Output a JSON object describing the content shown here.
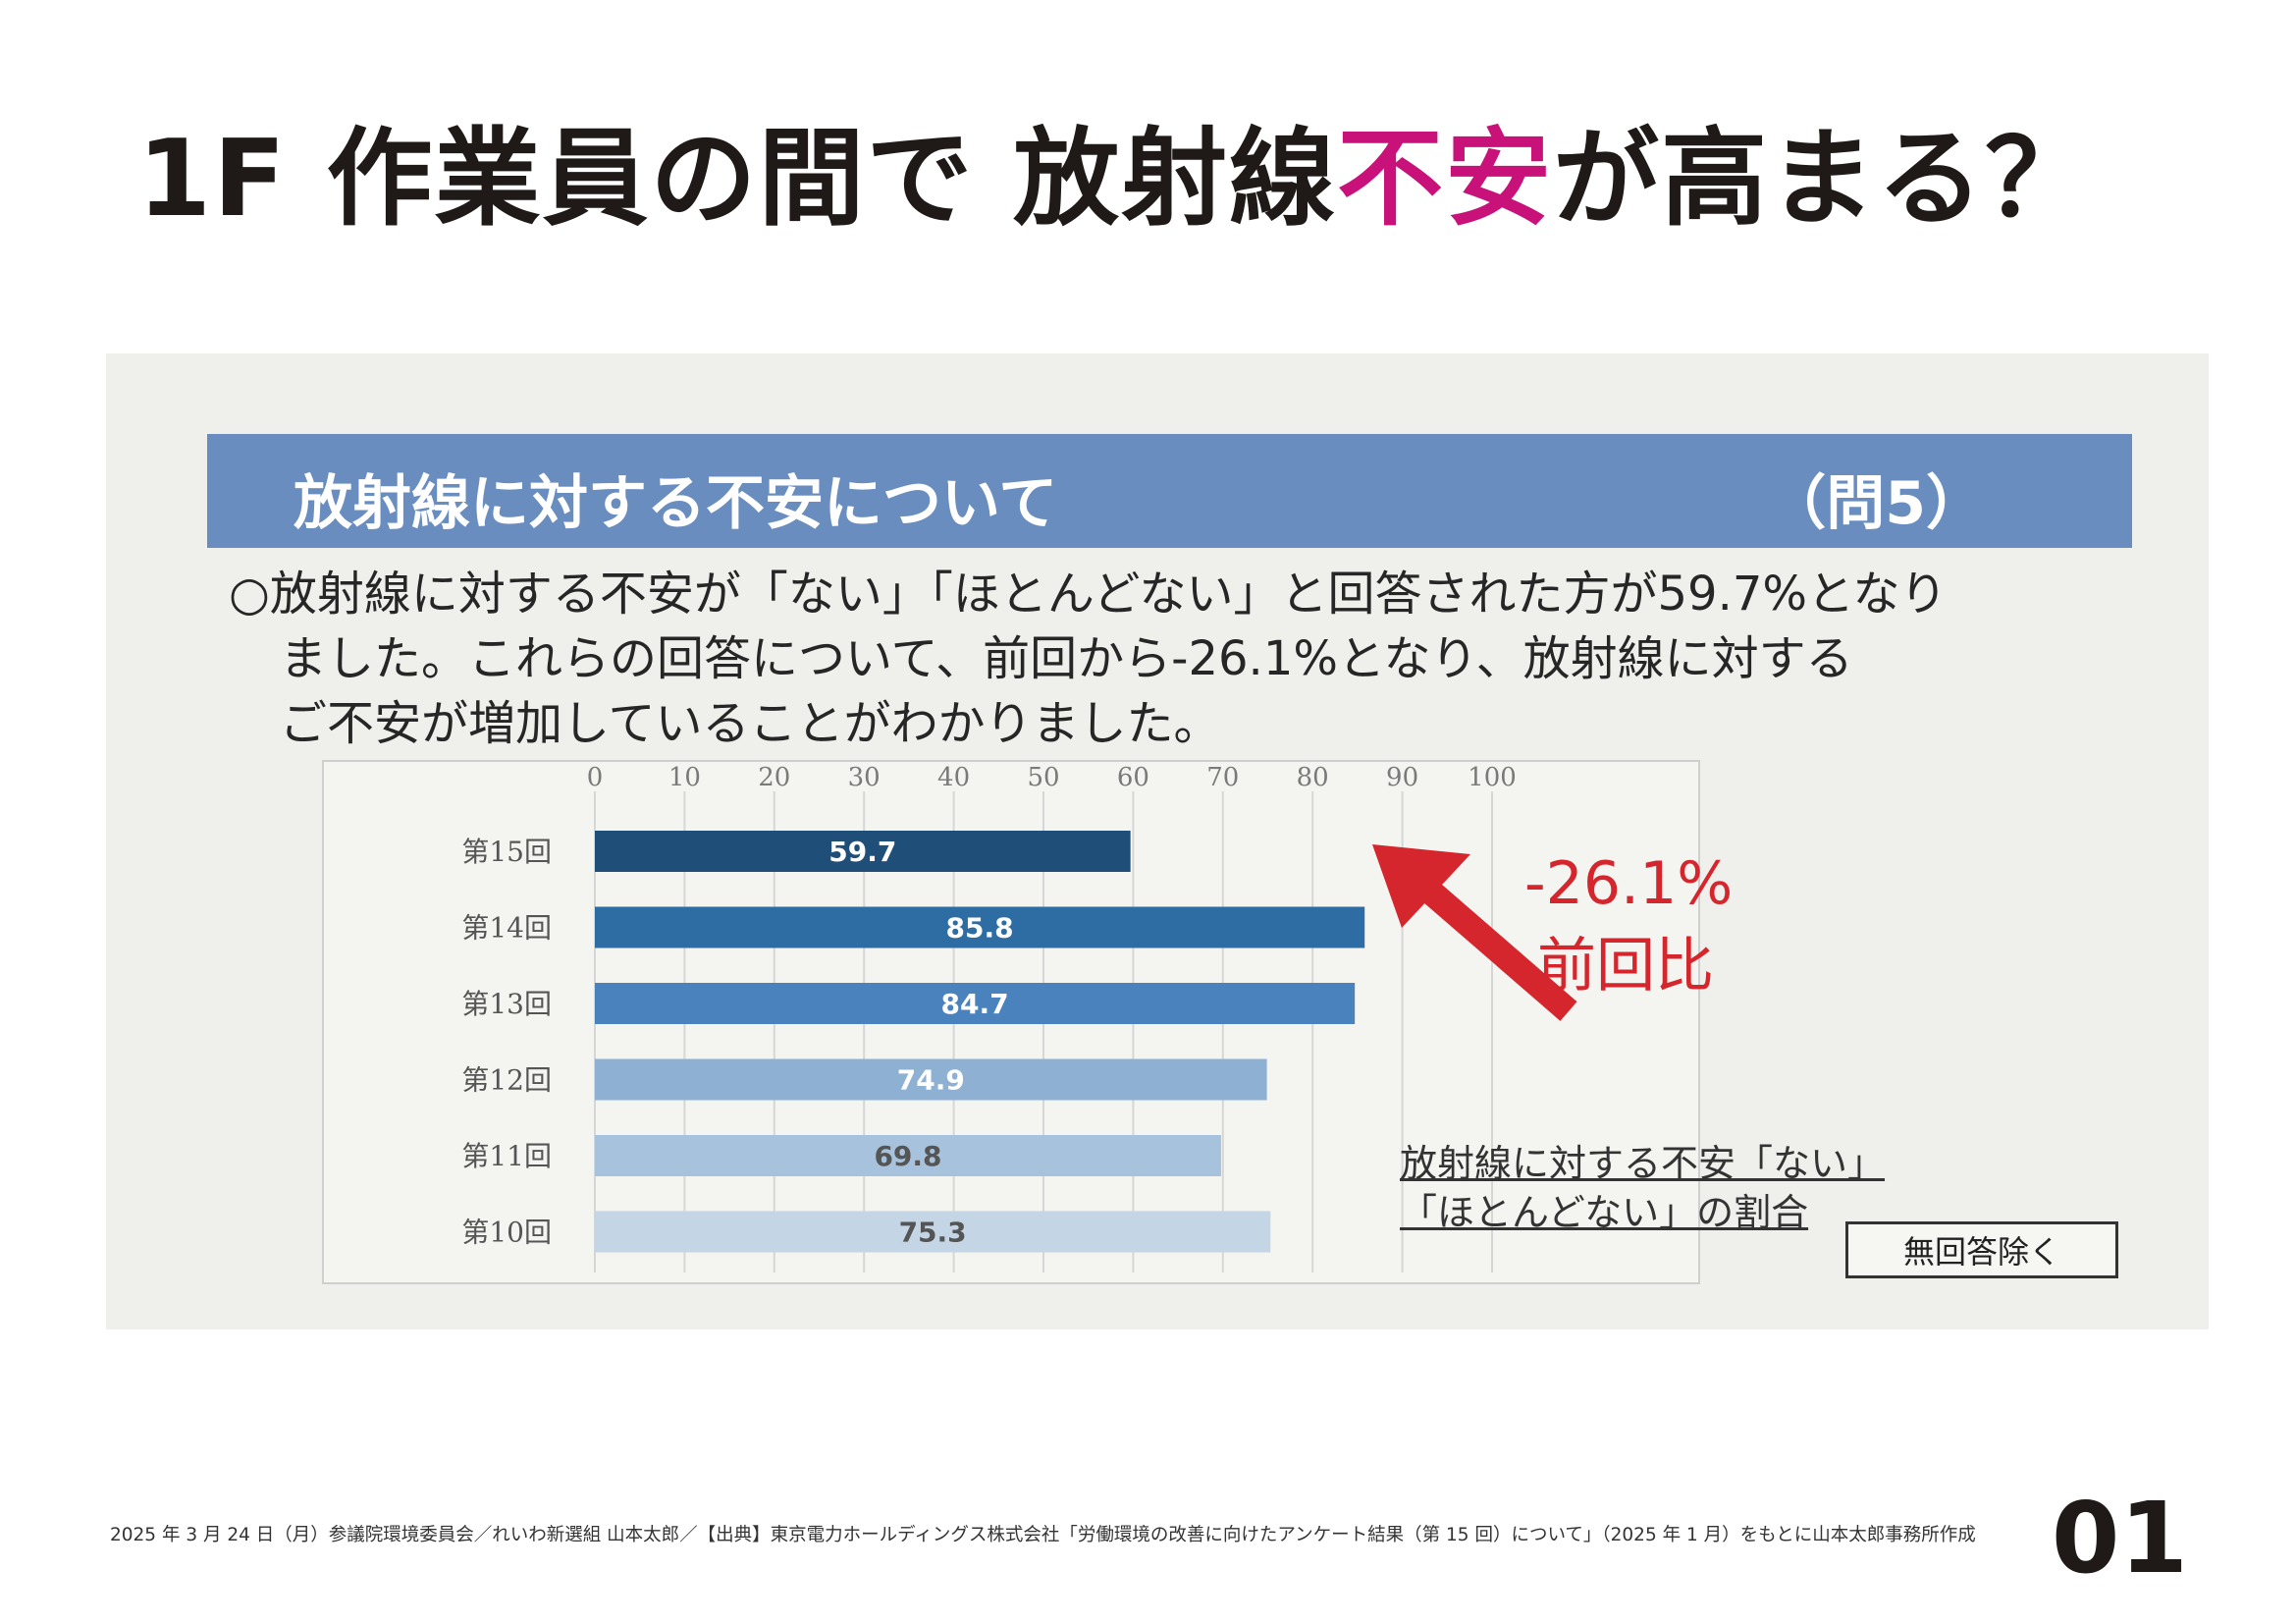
{
  "title": {
    "main_before": "1F 作業員の間で 放射線",
    "main_accent": "不安",
    "main_after": "が高まる？"
  },
  "panel": {
    "banner_title": "放射線に対する不安について",
    "banner_question": "（問5）",
    "description_lines": [
      "○放射線に対する不安が「ない」「ほとんどない」と回答された方が59.7%となり",
      "ました。これらの回答について、前回から-26.1%となり、放射線に対する",
      "ご不安が増加していることがわかりました。"
    ],
    "change_percent": "-26.1%",
    "change_label": "前回比",
    "legend_note_line1": "放射線に対する不安「ない」",
    "legend_note_line2": "「ほとんどない」の割合",
    "no_answer_label": "無回答除く"
  },
  "chart_data": {
    "type": "bar",
    "orientation": "horizontal",
    "categories": [
      "第15回",
      "第14回",
      "第13回",
      "第12回",
      "第11回",
      "第10回"
    ],
    "values": [
      59.7,
      85.8,
      84.7,
      74.9,
      69.8,
      75.3
    ],
    "value_labels": [
      "59.7",
      "85.8",
      "84.7",
      "74.9",
      "69.8",
      "75.3"
    ],
    "xlim": [
      0,
      100
    ],
    "xticks": [
      "0",
      "10",
      "20",
      "30",
      "40",
      "50",
      "60",
      "70",
      "80",
      "90",
      "100"
    ],
    "grid": true,
    "axis_position": "top",
    "colors": [
      "#1f4e79",
      "#2e6da4",
      "#4a82bd",
      "#8eb0d2",
      "#a7c2dc",
      "#c4d5e6"
    ],
    "label_colors": [
      "#ffffff",
      "#ffffff",
      "#ffffff",
      "#ffffff",
      "#555555",
      "#555555"
    ]
  },
  "footer": {
    "text": "2025 年 3 月 24 日（月）参議院環境委員会／れいわ新選組 山本太郎／【出典】東京電力ホールディングス株式会社「労働環境の改善に向けたアンケート結果（第 15 回）について」（2025 年 1 月）をもとに山本太郎事務所作成",
    "page_number": "01"
  }
}
